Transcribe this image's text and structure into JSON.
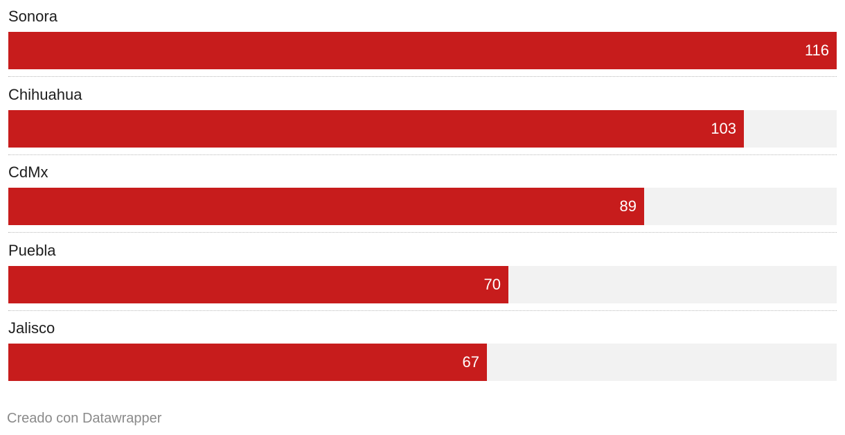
{
  "chart_data": {
    "type": "bar",
    "orientation": "horizontal",
    "categories": [
      "Sonora",
      "Chihuahua",
      "CdMx",
      "Puebla",
      "Jalisco"
    ],
    "values": [
      116,
      103,
      89,
      70,
      67
    ],
    "xlim": [
      0,
      116
    ],
    "bar_color": "#c71c1c",
    "track_color": "#f2f2f2",
    "value_label_color": "#ffffff",
    "grid": false,
    "legend": "none"
  },
  "footer": {
    "credit": "Creado con Datawrapper"
  }
}
